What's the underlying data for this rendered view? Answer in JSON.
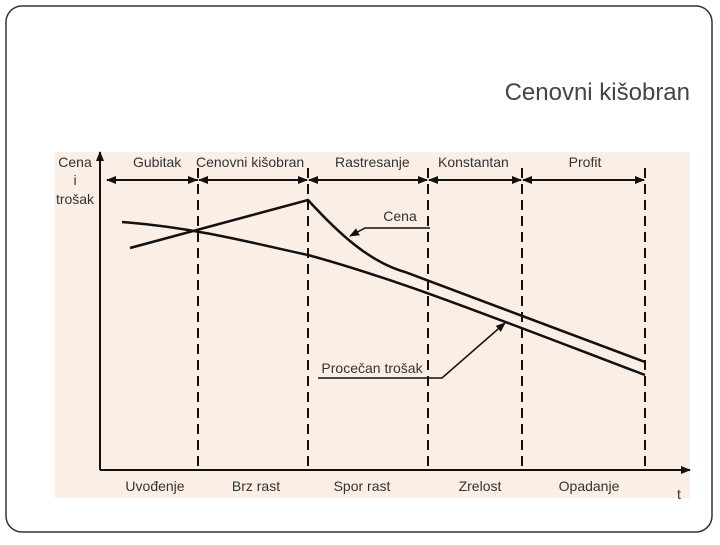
{
  "title": "Cenovni kišobran",
  "y_axis_label": [
    "Cena",
    "i",
    "trošak"
  ],
  "x_axis_label": "t",
  "top_phases": [
    "Gubitak",
    "Cenovni kišobran",
    "Rastresanje",
    "Konstantan",
    "Profit"
  ],
  "stages": [
    "Uvođenje",
    "Brz rast",
    "Spor rast",
    "Zrelost",
    "Opadanje"
  ],
  "annotations": {
    "price": "Cena",
    "cost": "Procečan trošak"
  }
}
